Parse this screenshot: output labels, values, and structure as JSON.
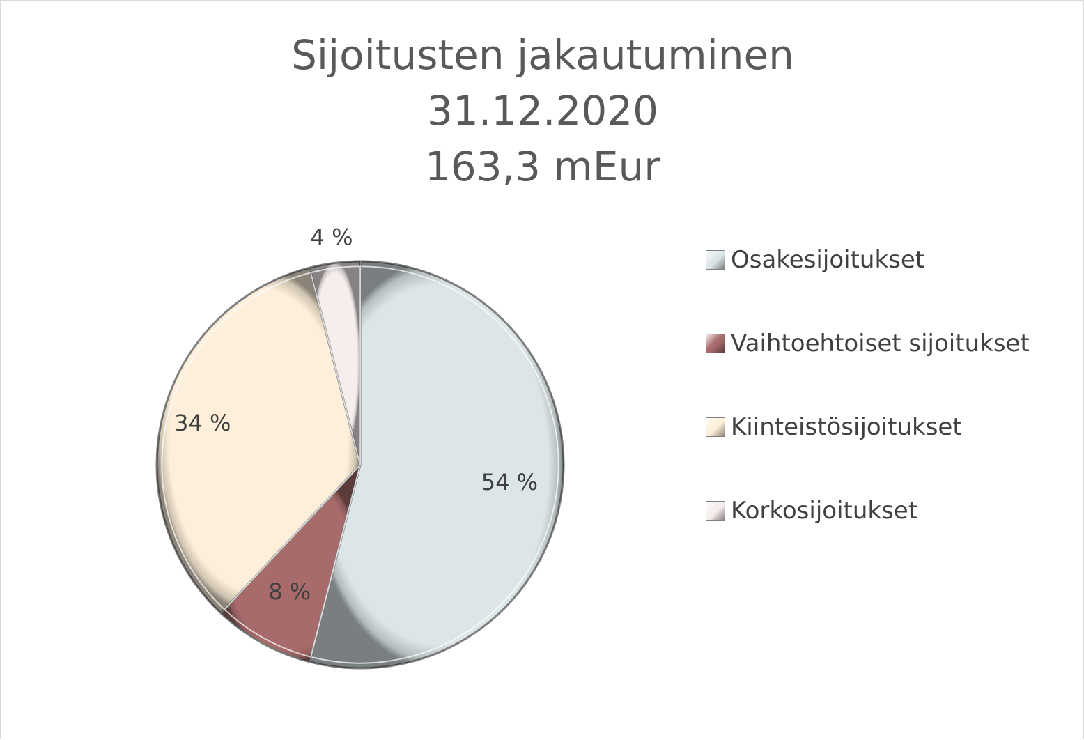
{
  "title": {
    "line1": "Sijoitusten jakautuminen",
    "line2": "31.12.2020",
    "line3": "163,3 mEur"
  },
  "chart_data": {
    "type": "pie",
    "title": "Sijoitusten jakautuminen 31.12.2020 163,3 mEur",
    "categories": [
      "Osakesijoitukset",
      "Vaihtoehtoiset sijoitukset",
      "Kiinteistösijoitukset",
      "Korkosijoitukset"
    ],
    "values": [
      54,
      8,
      34,
      4
    ],
    "labels": [
      "54 %",
      "8 %",
      "34 %",
      "4 %"
    ],
    "colors": [
      "#dce6e8",
      "#a86b6b",
      "#fdefd9",
      "#f6eded"
    ],
    "legend_position": "right"
  }
}
